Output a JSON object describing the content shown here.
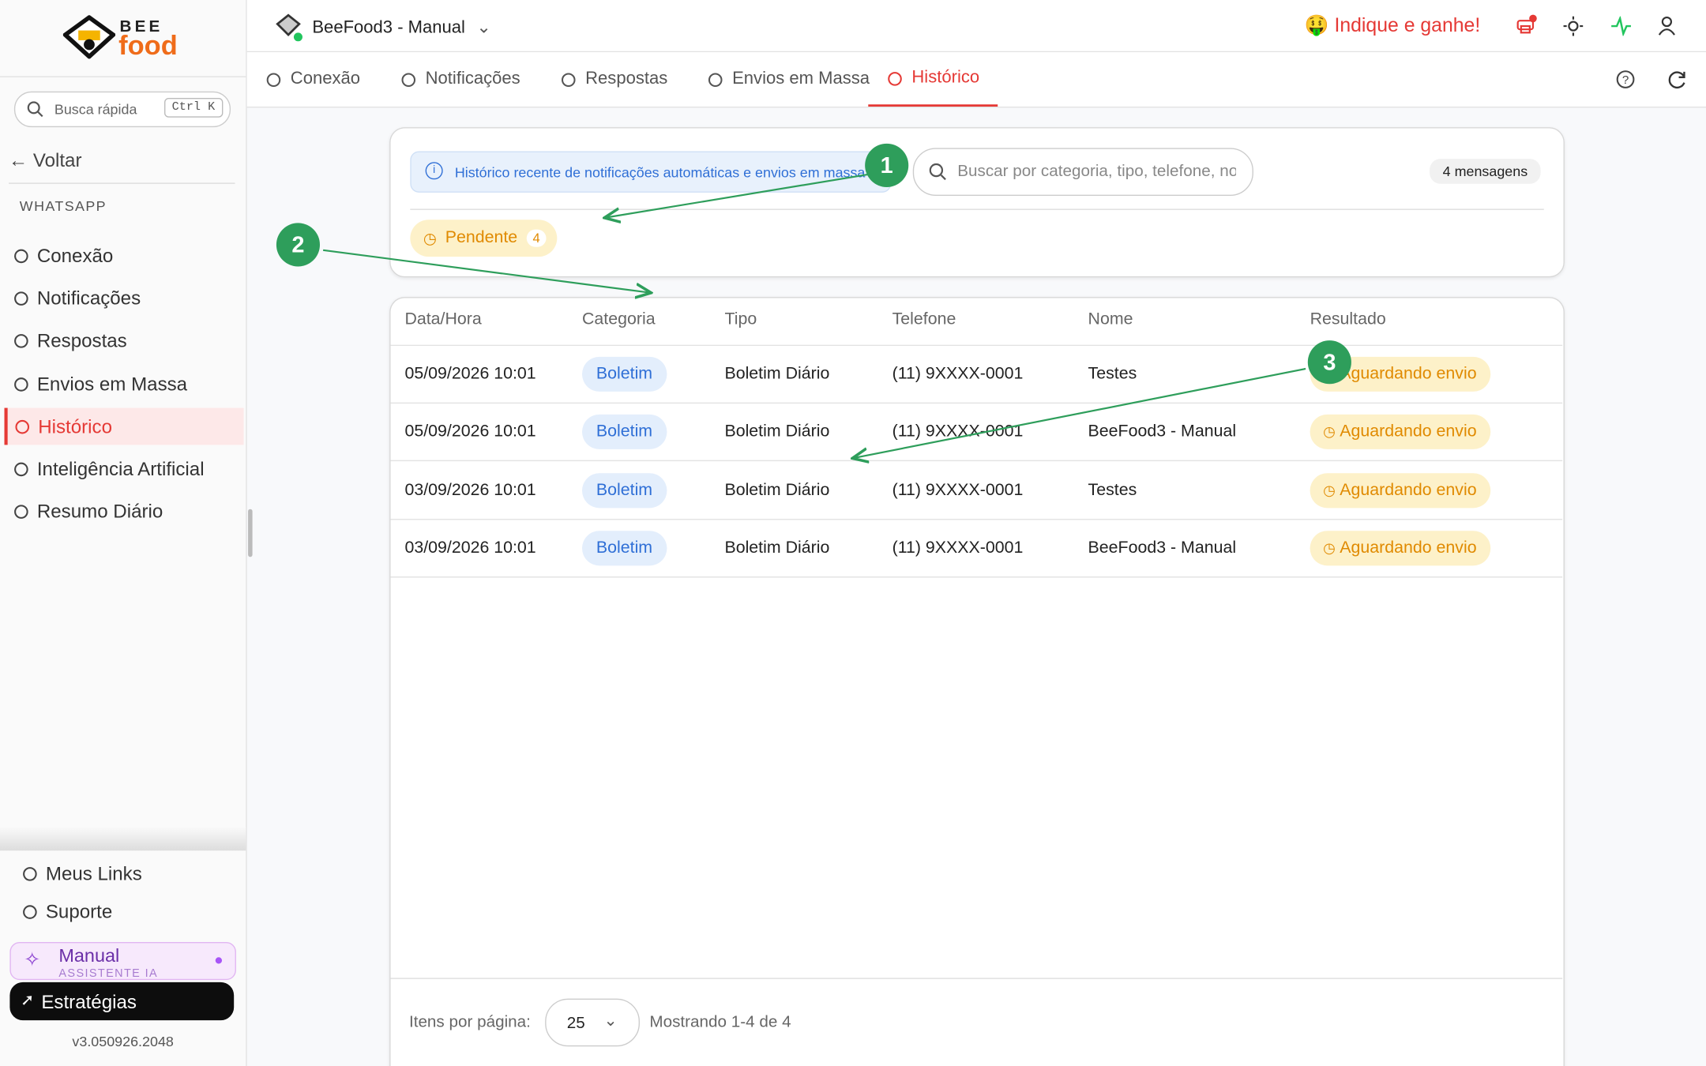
{
  "brand": {
    "top": "BEE",
    "bottom": "food"
  },
  "sidebar": {
    "search_placeholder": "Busca rápida",
    "shortcut": "Ctrl K",
    "back": "Voltar",
    "section": "WHATSAPP",
    "items": [
      "Conexão",
      "Notificações",
      "Respostas",
      "Envios em Massa",
      "Histórico",
      "Inteligência Artificial",
      "Resumo Diário"
    ],
    "links": [
      "Meus Links",
      "Suporte"
    ],
    "assistant": {
      "title": "Manual",
      "subtitle": "ASSISTENTE IA"
    },
    "strategies": "Estratégias",
    "version": "v3.050926.2048"
  },
  "header": {
    "store": "BeeFood3 - Manual",
    "referral": "Indique e ganhe!"
  },
  "tabs": [
    "Conexão",
    "Notificações",
    "Respostas",
    "Envios em Massa",
    "Histórico"
  ],
  "filters": {
    "info": "Histórico recente de notificações automáticas e envios em massa",
    "search_placeholder": "Buscar por categoria, tipo, telefone, nome",
    "count": "4 mensagens",
    "status": {
      "label": "Pendente",
      "count": 4
    }
  },
  "table": {
    "headers": [
      "Data/Hora",
      "Categoria",
      "Tipo",
      "Telefone",
      "Nome",
      "Resultado"
    ],
    "rows": [
      [
        "05/09/2026 10:01",
        "Boletim",
        "Boletim Diário",
        "(11) 9XXXX-0001",
        "Testes",
        "Aguardando envio"
      ],
      [
        "05/09/2026 10:01",
        "Boletim",
        "Boletim Diário",
        "(11) 9XXXX-0001",
        "BeeFood3 - Manual",
        "Aguardando envio"
      ],
      [
        "03/09/2026 10:01",
        "Boletim",
        "Boletim Diário",
        "(11) 9XXXX-0001",
        "Testes",
        "Aguardando envio"
      ],
      [
        "03/09/2026 10:01",
        "Boletim",
        "Boletim Diário",
        "(11) 9XXXX-0001",
        "BeeFood3 - Manual",
        "Aguardando envio"
      ]
    ]
  },
  "pagination": {
    "label": "Itens por página:",
    "per_page": 25,
    "summary": "Mostrando 1-4 de 4"
  },
  "annotations": [
    "1",
    "2",
    "3"
  ]
}
